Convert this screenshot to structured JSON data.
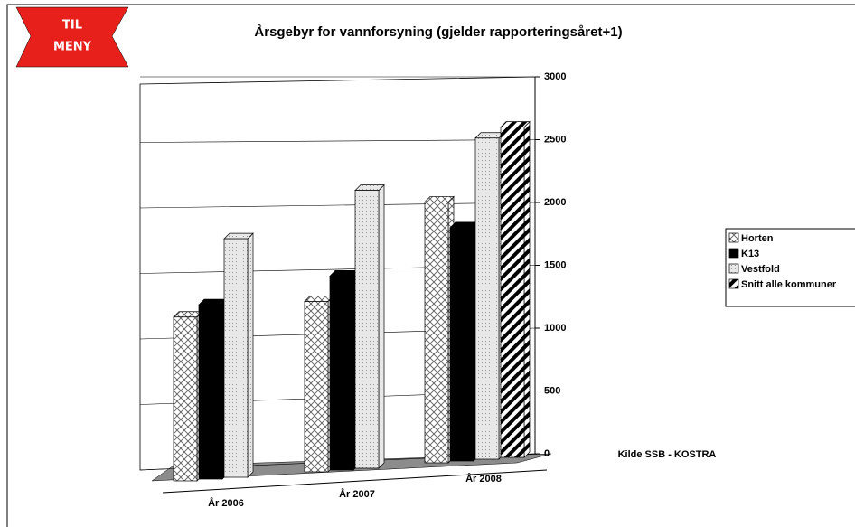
{
  "chart_data": {
    "type": "bar3d",
    "title": "Årsgebyr for vannforsyning (gjelder rapporteringsåret+1)",
    "menu_button": [
      "TIL",
      "MENY"
    ],
    "annotation": "Kilde SSB - KOSTRA",
    "categories": [
      "År 2006",
      "År 2007",
      "År 2008"
    ],
    "series": [
      {
        "name": "Horten",
        "color": "#ffffff",
        "pattern": "crosshatch",
        "values": [
          1250,
          1300,
          1990
        ]
      },
      {
        "name": "K13",
        "color": "#000000",
        "pattern": "solid",
        "values": [
          1330,
          1480,
          1780
        ]
      },
      {
        "name": "Vestfold",
        "color": "#e6e6e6",
        "pattern": "dots",
        "values": [
          1820,
          2120,
          2450
        ]
      },
      {
        "name": "Snitt alle kommuner",
        "color": "#ffffff",
        "pattern": "stripes",
        "values": [
          null,
          null,
          2520
        ]
      }
    ],
    "ylim": [
      0,
      3000
    ],
    "yticks": [
      0,
      500,
      1000,
      1500,
      2000,
      2500,
      3000
    ],
    "grid": true,
    "legend": "right"
  }
}
